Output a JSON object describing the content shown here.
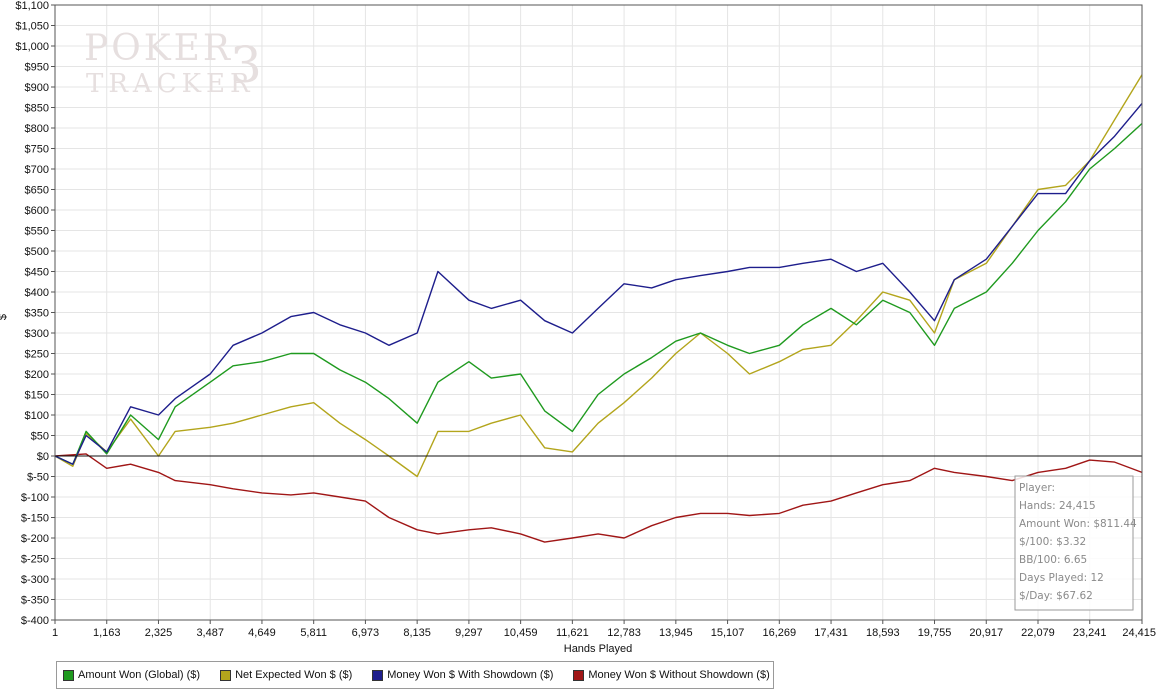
{
  "watermark": {
    "line1": "POKER",
    "line2": "TRACKER",
    "badge": "3"
  },
  "colors": {
    "amount_won": "#1f9a1f",
    "net_expected": "#b3a51c",
    "showdown": "#1e1e8c",
    "non_showdown": "#a01616",
    "grid": "#e5e5e5",
    "zero_line": "#111111"
  },
  "stats": {
    "player": "Player:",
    "hands": "Hands: 24,415",
    "amount_won": "Amount Won: $811.44",
    "per_100": "$/100: $3.32",
    "bb_per_100": "BB/100: 6.65",
    "days_played": "Days Played: 12",
    "per_day": "$/Day: $67.62"
  },
  "chart_data": {
    "type": "line",
    "title": "",
    "xlabel": "Hands Played",
    "ylabel": "$",
    "xlim": [
      1,
      24415
    ],
    "ylim": [
      -400,
      1100
    ],
    "grid": true,
    "legend_position": "bottom-left",
    "x_ticks": [
      1,
      1163,
      2325,
      3487,
      4649,
      5811,
      6973,
      8135,
      9297,
      10459,
      11621,
      12783,
      13945,
      15107,
      16269,
      17431,
      18593,
      19755,
      20917,
      22079,
      23241,
      24415
    ],
    "x_tick_labels": [
      "1",
      "1,163",
      "2,325",
      "3,487",
      "4,649",
      "5,811",
      "6,973",
      "8,135",
      "9,297",
      "10,459",
      "11,621",
      "12,783",
      "13,945",
      "15,107",
      "16,269",
      "17,431",
      "18,593",
      "19,755",
      "20,917",
      "22,079",
      "23,241",
      "24,415"
    ],
    "y_ticks": [
      1100,
      1050,
      1000,
      950,
      900,
      850,
      800,
      750,
      700,
      650,
      600,
      550,
      500,
      450,
      400,
      350,
      300,
      250,
      200,
      150,
      100,
      50,
      0,
      -50,
      -100,
      -150,
      -200,
      -250,
      -300,
      -350,
      -400
    ],
    "y_tick_labels": [
      "$1,100",
      "$1,050",
      "$1,000",
      "$950",
      "$900",
      "$850",
      "$800",
      "$750",
      "$700",
      "$650",
      "$600",
      "$550",
      "$500",
      "$450",
      "$400",
      "$350",
      "$300",
      "$250",
      "$200",
      "$150",
      "$100",
      "$50",
      "$0",
      "$-50",
      "$-100",
      "$-150",
      "$-200",
      "$-250",
      "$-300",
      "$-350",
      "$-400"
    ],
    "series": [
      {
        "name": "Amount Won (Global) ($)",
        "color": "#1f9a1f",
        "points": [
          [
            1,
            0
          ],
          [
            400,
            -20
          ],
          [
            700,
            60
          ],
          [
            1163,
            5
          ],
          [
            1700,
            100
          ],
          [
            2325,
            40
          ],
          [
            2700,
            120
          ],
          [
            3487,
            180
          ],
          [
            4000,
            220
          ],
          [
            4649,
            230
          ],
          [
            5300,
            250
          ],
          [
            5811,
            250
          ],
          [
            6400,
            210
          ],
          [
            6973,
            180
          ],
          [
            7500,
            140
          ],
          [
            8135,
            80
          ],
          [
            8600,
            180
          ],
          [
            9297,
            230
          ],
          [
            9800,
            190
          ],
          [
            10459,
            200
          ],
          [
            11000,
            110
          ],
          [
            11621,
            60
          ],
          [
            12200,
            150
          ],
          [
            12783,
            200
          ],
          [
            13400,
            240
          ],
          [
            13945,
            280
          ],
          [
            14500,
            300
          ],
          [
            15107,
            270
          ],
          [
            15600,
            250
          ],
          [
            16269,
            270
          ],
          [
            16800,
            320
          ],
          [
            17431,
            360
          ],
          [
            18000,
            320
          ],
          [
            18593,
            380
          ],
          [
            19200,
            350
          ],
          [
            19755,
            270
          ],
          [
            20200,
            360
          ],
          [
            20917,
            400
          ],
          [
            21500,
            470
          ],
          [
            22079,
            550
          ],
          [
            22700,
            620
          ],
          [
            23241,
            700
          ],
          [
            23800,
            750
          ],
          [
            24415,
            811
          ]
        ]
      },
      {
        "name": "Net Expected Won $ ($)",
        "color": "#b3a51c",
        "points": [
          [
            1,
            0
          ],
          [
            400,
            -25
          ],
          [
            700,
            55
          ],
          [
            1163,
            10
          ],
          [
            1700,
            90
          ],
          [
            2325,
            0
          ],
          [
            2700,
            60
          ],
          [
            3487,
            70
          ],
          [
            4000,
            80
          ],
          [
            4649,
            100
          ],
          [
            5300,
            120
          ],
          [
            5811,
            130
          ],
          [
            6400,
            80
          ],
          [
            6973,
            40
          ],
          [
            7500,
            0
          ],
          [
            8135,
            -50
          ],
          [
            8600,
            60
          ],
          [
            9297,
            60
          ],
          [
            9800,
            80
          ],
          [
            10459,
            100
          ],
          [
            11000,
            20
          ],
          [
            11621,
            10
          ],
          [
            12200,
            80
          ],
          [
            12783,
            130
          ],
          [
            13400,
            190
          ],
          [
            13945,
            250
          ],
          [
            14500,
            300
          ],
          [
            15107,
            250
          ],
          [
            15600,
            200
          ],
          [
            16269,
            230
          ],
          [
            16800,
            260
          ],
          [
            17431,
            270
          ],
          [
            18000,
            330
          ],
          [
            18593,
            400
          ],
          [
            19200,
            380
          ],
          [
            19755,
            300
          ],
          [
            20200,
            430
          ],
          [
            20917,
            470
          ],
          [
            21500,
            560
          ],
          [
            22079,
            650
          ],
          [
            22700,
            660
          ],
          [
            23241,
            720
          ],
          [
            23800,
            820
          ],
          [
            24415,
            930
          ]
        ]
      },
      {
        "name": "Money Won $ With Showdown ($)",
        "color": "#1e1e8c",
        "points": [
          [
            1,
            0
          ],
          [
            400,
            -20
          ],
          [
            700,
            50
          ],
          [
            1163,
            10
          ],
          [
            1700,
            120
          ],
          [
            2325,
            100
          ],
          [
            2700,
            140
          ],
          [
            3487,
            200
          ],
          [
            4000,
            270
          ],
          [
            4649,
            300
          ],
          [
            5300,
            340
          ],
          [
            5811,
            350
          ],
          [
            6400,
            320
          ],
          [
            6973,
            300
          ],
          [
            7500,
            270
          ],
          [
            8135,
            300
          ],
          [
            8600,
            450
          ],
          [
            9297,
            380
          ],
          [
            9800,
            360
          ],
          [
            10459,
            380
          ],
          [
            11000,
            330
          ],
          [
            11621,
            300
          ],
          [
            12200,
            360
          ],
          [
            12783,
            420
          ],
          [
            13400,
            410
          ],
          [
            13945,
            430
          ],
          [
            14500,
            440
          ],
          [
            15107,
            450
          ],
          [
            15600,
            460
          ],
          [
            16269,
            460
          ],
          [
            16800,
            470
          ],
          [
            17431,
            480
          ],
          [
            18000,
            450
          ],
          [
            18593,
            470
          ],
          [
            19200,
            400
          ],
          [
            19755,
            330
          ],
          [
            20200,
            430
          ],
          [
            20917,
            480
          ],
          [
            21500,
            560
          ],
          [
            22079,
            640
          ],
          [
            22700,
            640
          ],
          [
            23241,
            720
          ],
          [
            23800,
            780
          ],
          [
            24415,
            860
          ]
        ]
      },
      {
        "name": "Money Won $ Without Showdown ($)",
        "color": "#a01616",
        "points": [
          [
            1,
            0
          ],
          [
            700,
            5
          ],
          [
            1163,
            -30
          ],
          [
            1700,
            -20
          ],
          [
            2325,
            -40
          ],
          [
            2700,
            -60
          ],
          [
            3487,
            -70
          ],
          [
            4000,
            -80
          ],
          [
            4649,
            -90
          ],
          [
            5300,
            -95
          ],
          [
            5811,
            -90
          ],
          [
            6400,
            -100
          ],
          [
            6973,
            -110
          ],
          [
            7500,
            -150
          ],
          [
            8135,
            -180
          ],
          [
            8600,
            -190
          ],
          [
            9297,
            -180
          ],
          [
            9800,
            -175
          ],
          [
            10459,
            -190
          ],
          [
            11000,
            -210
          ],
          [
            11621,
            -200
          ],
          [
            12200,
            -190
          ],
          [
            12783,
            -200
          ],
          [
            13400,
            -170
          ],
          [
            13945,
            -150
          ],
          [
            14500,
            -140
          ],
          [
            15107,
            -140
          ],
          [
            15600,
            -145
          ],
          [
            16269,
            -140
          ],
          [
            16800,
            -120
          ],
          [
            17431,
            -110
          ],
          [
            18000,
            -90
          ],
          [
            18593,
            -70
          ],
          [
            19200,
            -60
          ],
          [
            19755,
            -30
          ],
          [
            20200,
            -40
          ],
          [
            20917,
            -50
          ],
          [
            21500,
            -60
          ],
          [
            22079,
            -40
          ],
          [
            22700,
            -30
          ],
          [
            23241,
            -10
          ],
          [
            23800,
            -15
          ],
          [
            24415,
            -40
          ]
        ]
      }
    ]
  }
}
